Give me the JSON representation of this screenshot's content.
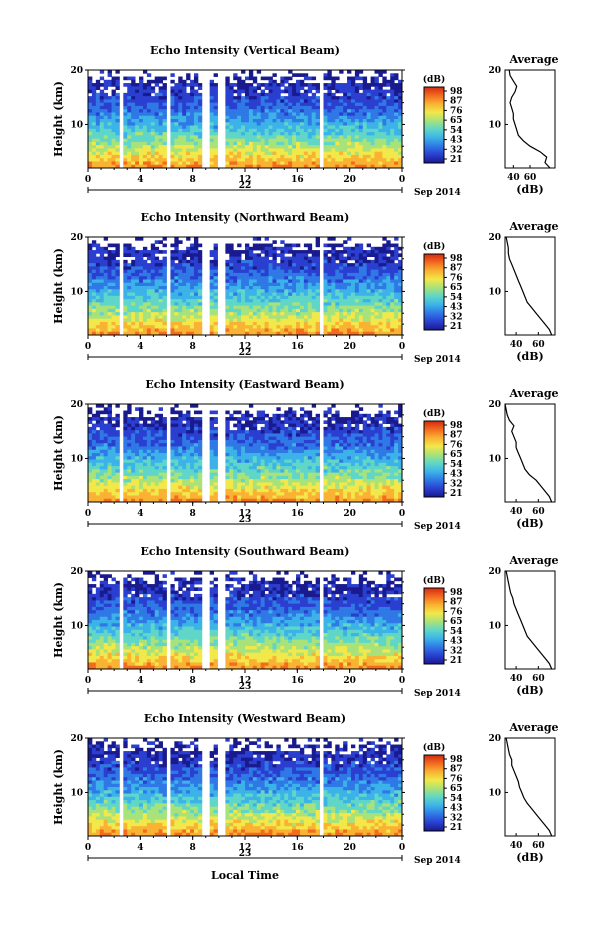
{
  "figure": {
    "xaxis_label": "Local Time",
    "date_label": "Sep 2014",
    "colorbar_unit": "(dB)",
    "colorbar_ticks": [
      "98",
      "87",
      "76",
      "65",
      "54",
      "43",
      "32",
      "21"
    ],
    "colormap": [
      "#1a1a8f",
      "#2a3fd0",
      "#2f78e6",
      "#3cb3e8",
      "#5fd6c8",
      "#a8e27a",
      "#f2e84a",
      "#f9b233",
      "#f26b1f",
      "#d42a12"
    ],
    "avg_title": "Average",
    "avg_xlabel": "(dB)"
  },
  "chart_data": [
    {
      "type": "heatmap",
      "title": "Echo Intensity (Vertical Beam)",
      "ylabel": "Height (km)",
      "x_ticks": [
        "0",
        "4",
        "8",
        "12",
        "16",
        "20",
        "0"
      ],
      "y_ticks": [
        "20",
        "10"
      ],
      "day_label": "22",
      "xlim": [
        0,
        24
      ],
      "ylim": [
        2,
        20
      ],
      "gaps_hours": [
        [
          2.4,
          2.8
        ],
        [
          5.9,
          6.3
        ],
        [
          8.6,
          9.3
        ],
        [
          10.0,
          10.5
        ],
        [
          17.7,
          18.1
        ]
      ],
      "avg": {
        "xlim": [
          30,
          90
        ],
        "x_ticks": [
          "40",
          "60"
        ],
        "profile": [
          [
            84,
            2
          ],
          [
            78,
            3
          ],
          [
            80,
            4
          ],
          [
            72,
            5
          ],
          [
            60,
            6
          ],
          [
            52,
            7
          ],
          [
            46,
            8
          ],
          [
            44,
            9
          ],
          [
            42,
            10
          ],
          [
            40,
            11
          ],
          [
            40,
            12
          ],
          [
            38,
            13
          ],
          [
            36,
            14
          ],
          [
            38,
            15
          ],
          [
            42,
            16
          ],
          [
            44,
            17
          ],
          [
            40,
            18
          ],
          [
            36,
            19
          ],
          [
            35,
            20
          ]
        ]
      }
    },
    {
      "type": "heatmap",
      "title": "Echo Intensity (Northward Beam)",
      "ylabel": "Height (km)",
      "x_ticks": [
        "0",
        "4",
        "8",
        "12",
        "16",
        "20",
        "0"
      ],
      "y_ticks": [
        "20",
        "10"
      ],
      "day_label": "22",
      "xlim": [
        0,
        24
      ],
      "ylim": [
        2,
        20
      ],
      "gaps_hours": [
        [
          2.4,
          2.8
        ],
        [
          5.9,
          6.3
        ],
        [
          8.6,
          9.3
        ],
        [
          10.0,
          10.5
        ],
        [
          17.7,
          18.1
        ]
      ],
      "avg": {
        "xlim": [
          30,
          75
        ],
        "x_ticks": [
          "40",
          "60"
        ],
        "profile": [
          [
            72,
            2
          ],
          [
            70,
            3
          ],
          [
            66,
            4
          ],
          [
            62,
            5
          ],
          [
            58,
            6
          ],
          [
            54,
            7
          ],
          [
            50,
            8
          ],
          [
            48,
            9
          ],
          [
            46,
            10
          ],
          [
            44,
            11
          ],
          [
            42,
            12
          ],
          [
            40,
            13
          ],
          [
            38,
            14
          ],
          [
            36,
            15
          ],
          [
            34,
            16
          ],
          [
            33,
            17
          ],
          [
            33,
            18
          ],
          [
            32,
            19
          ],
          [
            31,
            20
          ]
        ]
      }
    },
    {
      "type": "heatmap",
      "title": "Echo Intensity (Eastward Beam)",
      "ylabel": "Height (km)",
      "x_ticks": [
        "0",
        "4",
        "8",
        "12",
        "16",
        "20",
        "0"
      ],
      "y_ticks": [
        "20",
        "10"
      ],
      "day_label": "23",
      "xlim": [
        0,
        24
      ],
      "ylim": [
        2,
        20
      ],
      "gaps_hours": [
        [
          2.4,
          2.8
        ],
        [
          5.9,
          6.3
        ],
        [
          8.6,
          9.3
        ],
        [
          10.0,
          10.5
        ],
        [
          17.7,
          18.1
        ]
      ],
      "avg": {
        "xlim": [
          30,
          75
        ],
        "x_ticks": [
          "40",
          "60"
        ],
        "profile": [
          [
            72,
            2
          ],
          [
            70,
            3
          ],
          [
            66,
            4
          ],
          [
            62,
            5
          ],
          [
            58,
            6
          ],
          [
            52,
            7
          ],
          [
            48,
            8
          ],
          [
            46,
            9
          ],
          [
            44,
            10
          ],
          [
            42,
            11
          ],
          [
            40,
            12
          ],
          [
            40,
            13
          ],
          [
            38,
            14
          ],
          [
            36,
            15
          ],
          [
            38,
            16
          ],
          [
            34,
            17
          ],
          [
            32,
            18
          ],
          [
            31,
            19
          ],
          [
            30,
            20
          ]
        ]
      }
    },
    {
      "type": "heatmap",
      "title": "Echo Intensity (Southward Beam)",
      "ylabel": "Height (km)",
      "x_ticks": [
        "0",
        "4",
        "8",
        "12",
        "16",
        "20",
        "0"
      ],
      "y_ticks": [
        "20",
        "10"
      ],
      "day_label": "23",
      "xlim": [
        0,
        24
      ],
      "ylim": [
        2,
        20
      ],
      "gaps_hours": [
        [
          2.4,
          2.8
        ],
        [
          5.9,
          6.3
        ],
        [
          8.6,
          9.3
        ],
        [
          10.0,
          10.5
        ],
        [
          17.7,
          18.1
        ]
      ],
      "avg": {
        "xlim": [
          30,
          75
        ],
        "x_ticks": [
          "40",
          "60"
        ],
        "profile": [
          [
            72,
            2
          ],
          [
            70,
            3
          ],
          [
            66,
            4
          ],
          [
            62,
            5
          ],
          [
            58,
            6
          ],
          [
            54,
            7
          ],
          [
            50,
            8
          ],
          [
            48,
            9
          ],
          [
            46,
            10
          ],
          [
            44,
            11
          ],
          [
            42,
            12
          ],
          [
            40,
            13
          ],
          [
            38,
            14
          ],
          [
            37,
            15
          ],
          [
            35,
            16
          ],
          [
            34,
            17
          ],
          [
            33,
            18
          ],
          [
            32,
            19
          ],
          [
            31,
            20
          ]
        ]
      }
    },
    {
      "type": "heatmap",
      "title": "Echo Intensity (Westward Beam)",
      "ylabel": "Height (km)",
      "x_ticks": [
        "0",
        "4",
        "8",
        "12",
        "16",
        "20",
        "0"
      ],
      "y_ticks": [
        "20",
        "10"
      ],
      "day_label": "23",
      "xlim": [
        0,
        24
      ],
      "ylim": [
        2,
        20
      ],
      "gaps_hours": [
        [
          2.4,
          2.8
        ],
        [
          5.9,
          6.3
        ],
        [
          8.6,
          9.3
        ],
        [
          10.0,
          10.5
        ],
        [
          17.7,
          18.1
        ]
      ],
      "avg": {
        "xlim": [
          30,
          75
        ],
        "x_ticks": [
          "40",
          "60"
        ],
        "profile": [
          [
            72,
            2
          ],
          [
            70,
            3
          ],
          [
            66,
            4
          ],
          [
            62,
            5
          ],
          [
            58,
            6
          ],
          [
            54,
            7
          ],
          [
            50,
            8
          ],
          [
            47,
            9
          ],
          [
            45,
            10
          ],
          [
            43,
            11
          ],
          [
            42,
            12
          ],
          [
            40,
            13
          ],
          [
            38,
            14
          ],
          [
            36,
            15
          ],
          [
            36,
            16
          ],
          [
            34,
            17
          ],
          [
            33,
            18
          ],
          [
            32,
            19
          ],
          [
            31,
            20
          ]
        ]
      }
    }
  ]
}
